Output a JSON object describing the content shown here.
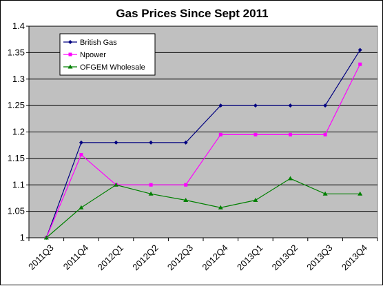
{
  "chart_data": {
    "type": "line",
    "title": "Gas Prices Since Sept 2011",
    "xlabel": "",
    "ylabel": "",
    "categories": [
      "2011Q3",
      "2011Q4",
      "2012Q1",
      "2012Q2",
      "2012Q3",
      "2012Q4",
      "2013Q1",
      "2013Q2",
      "2013Q3",
      "2013Q4"
    ],
    "ylim": [
      1,
      1.4
    ],
    "yticks": [
      "1",
      "1.05",
      "1.1",
      "1.15",
      "1.2",
      "1.25",
      "1.3",
      "1.35",
      "1.4"
    ],
    "grid": true,
    "legend_position": "top-left",
    "series": [
      {
        "name": "British Gas",
        "color": "#000080",
        "marker": "diamond",
        "values": [
          1.0,
          1.18,
          1.18,
          1.18,
          1.18,
          1.25,
          1.25,
          1.25,
          1.25,
          1.355
        ]
      },
      {
        "name": "Npower",
        "color": "#ff00ff",
        "marker": "square",
        "values": [
          1.0,
          1.157,
          1.1,
          1.1,
          1.1,
          1.195,
          1.195,
          1.195,
          1.195,
          1.328
        ]
      },
      {
        "name": "OFGEM Wholesale",
        "color": "#008000",
        "marker": "triangle",
        "values": [
          1.0,
          1.057,
          1.1,
          1.083,
          1.071,
          1.057,
          1.071,
          1.112,
          1.083,
          1.083
        ]
      }
    ],
    "plot_background": "#c0c0c0"
  }
}
